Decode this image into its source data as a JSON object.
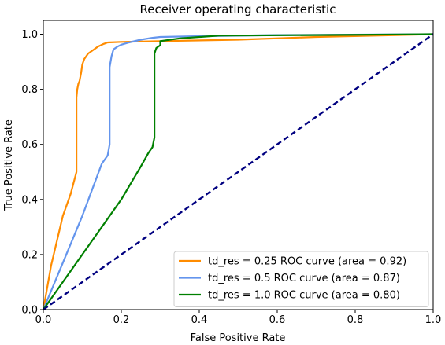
{
  "chart_data": {
    "type": "line",
    "title": "Receiver operating characteristic",
    "xlabel": "False Positive Rate",
    "ylabel": "True Positive Rate",
    "xlim": [
      0,
      1
    ],
    "ylim": [
      0,
      1.05
    ],
    "grid": false,
    "legend_position": "lower-right",
    "x_ticks": [
      "0.0",
      "0.2",
      "0.4",
      "0.6",
      "0.8",
      "1.0"
    ],
    "y_ticks": [
      "0.0",
      "0.2",
      "0.4",
      "0.6",
      "0.8",
      "1.0"
    ],
    "series": [
      {
        "name": "td_res = 0.25  ROC curve (area = 0.92)",
        "color": "#ff8c00",
        "dash": "solid",
        "x": [
          0,
          0.02,
          0.05,
          0.07,
          0.085,
          0.085,
          0.087,
          0.09,
          0.093,
          0.097,
          0.1,
          0.105,
          0.115,
          0.125,
          0.14,
          0.155,
          0.165,
          0.2,
          0.3,
          0.5,
          0.7,
          1.0
        ],
        "y": [
          0,
          0.16,
          0.34,
          0.42,
          0.5,
          0.77,
          0.8,
          0.82,
          0.83,
          0.86,
          0.89,
          0.91,
          0.93,
          0.94,
          0.955,
          0.965,
          0.97,
          0.972,
          0.975,
          0.98,
          0.99,
          1.0
        ]
      },
      {
        "name": "td_res = 0.5 ROC curve (area = 0.87)",
        "color": "#6495ed",
        "dash": "solid",
        "x": [
          0,
          0.05,
          0.1,
          0.15,
          0.165,
          0.17,
          0.17,
          0.175,
          0.18,
          0.19,
          0.2,
          0.22,
          0.25,
          0.28,
          0.3,
          0.4,
          0.6,
          1.0
        ],
        "y": [
          0,
          0.17,
          0.34,
          0.53,
          0.56,
          0.6,
          0.88,
          0.92,
          0.945,
          0.955,
          0.962,
          0.97,
          0.98,
          0.987,
          0.99,
          0.993,
          0.997,
          1.0
        ]
      },
      {
        "name": "td_res = 1.0 ROC curve (area = 0.80)",
        "color": "#008000",
        "dash": "solid",
        "x": [
          0,
          0.1,
          0.2,
          0.25,
          0.27,
          0.28,
          0.285,
          0.285,
          0.29,
          0.3,
          0.3,
          0.35,
          0.45,
          0.7,
          1.0
        ],
        "y": [
          0,
          0.2,
          0.4,
          0.52,
          0.57,
          0.59,
          0.625,
          0.93,
          0.95,
          0.96,
          0.975,
          0.985,
          0.995,
          0.997,
          1.0
        ]
      },
      {
        "name": "",
        "color": "#000080",
        "dash": "dashed",
        "x": [
          0,
          1
        ],
        "y": [
          0,
          1
        ]
      }
    ]
  }
}
